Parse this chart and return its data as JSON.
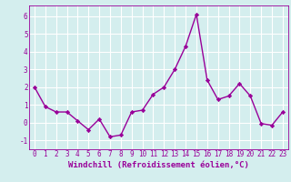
{
  "x": [
    0,
    1,
    2,
    3,
    4,
    5,
    6,
    7,
    8,
    9,
    10,
    11,
    12,
    13,
    14,
    15,
    16,
    17,
    18,
    19,
    20,
    21,
    22,
    23
  ],
  "y": [
    2.0,
    0.9,
    0.6,
    0.6,
    0.1,
    -0.4,
    0.2,
    -0.8,
    -0.7,
    0.6,
    0.7,
    1.6,
    2.0,
    3.0,
    4.3,
    6.1,
    2.4,
    1.3,
    1.5,
    2.2,
    1.5,
    -0.05,
    -0.15,
    0.6
  ],
  "line_color": "#990099",
  "marker": "D",
  "marker_size": 2.2,
  "linewidth": 1.0,
  "xlabel": "Windchill (Refroidissement éolien,°C)",
  "xlabel_fontsize": 6.5,
  "background_color": "#d4eeee",
  "grid_color": "#ffffff",
  "ylim": [
    -1.5,
    6.6
  ],
  "xlim": [
    -0.5,
    23.5
  ],
  "yticks": [
    -1,
    0,
    1,
    2,
    3,
    4,
    5,
    6
  ],
  "xticks": [
    0,
    1,
    2,
    3,
    4,
    5,
    6,
    7,
    8,
    9,
    10,
    11,
    12,
    13,
    14,
    15,
    16,
    17,
    18,
    19,
    20,
    21,
    22,
    23
  ],
  "tick_fontsize": 5.5
}
